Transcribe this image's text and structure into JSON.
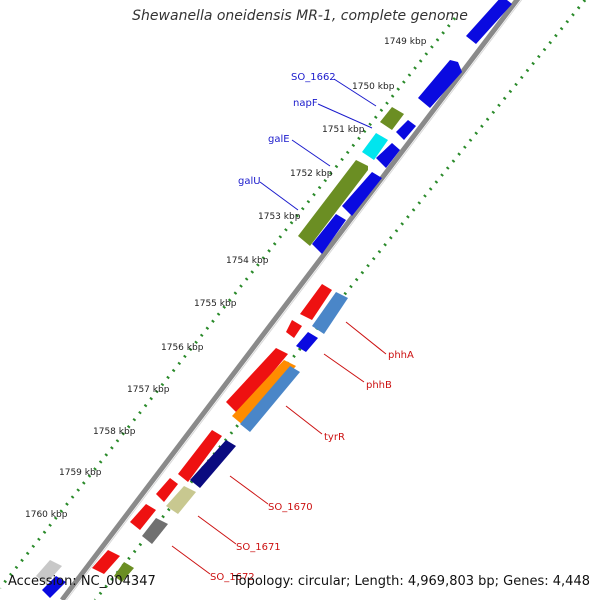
{
  "title": "Shewanella oneidensis MR-1, complete genome",
  "footer": {
    "accession": "Accession: NC_004347",
    "summary": "Topology: circular; Length: 4,969,803 bp; Genes: 4,448"
  },
  "colors": {
    "backbone": "#8a8a8a",
    "tick_dots": "#1f8a1f",
    "label_blue": "#1a1acc",
    "label_red": "#cc1111"
  },
  "kbp_labels": [
    "1749 kbp",
    "1750 kbp",
    "1751 kbp",
    "1752 kbp",
    "1753 kbp",
    "1754 kbp",
    "1755 kbp",
    "1756 kbp",
    "1757 kbp",
    "1758 kbp",
    "1759 kbp",
    "1760 kbp"
  ],
  "gene_labels_left": [
    {
      "text": "SO_1662",
      "color": "#1a1acc"
    },
    {
      "text": "napF",
      "color": "#1a1acc"
    },
    {
      "text": "galE",
      "color": "#1a1acc"
    },
    {
      "text": "galU",
      "color": "#1a1acc"
    }
  ],
  "gene_labels_right": [
    {
      "text": "phhA",
      "color": "#cc1111"
    },
    {
      "text": "phhB",
      "color": "#cc1111"
    },
    {
      "text": "tyrR",
      "color": "#cc1111"
    },
    {
      "text": "SO_1670",
      "color": "#cc1111"
    },
    {
      "text": "SO_1671",
      "color": "#cc1111"
    },
    {
      "text": "SO_1672",
      "color": "#cc1111"
    }
  ]
}
